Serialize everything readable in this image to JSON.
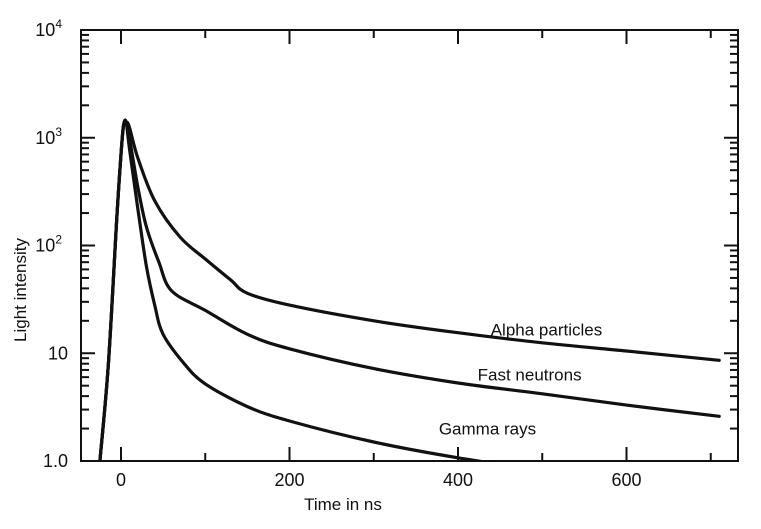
{
  "chart_data": {
    "type": "line",
    "title": "",
    "xlabel": "Time in ns",
    "ylabel": "Light intensity",
    "xlim": [
      -50,
      720
    ],
    "ylim": [
      1,
      10000
    ],
    "y_scale": "log",
    "x_ticks": [
      0,
      200,
      400,
      600
    ],
    "x_tick_labels": [
      "0",
      "200",
      "400",
      "600"
    ],
    "y_ticks": [
      1,
      10,
      100,
      1000,
      10000
    ],
    "y_tick_labels": [
      {
        "base": "1.0",
        "exp": ""
      },
      {
        "base": "10",
        "exp": ""
      },
      {
        "base": "10",
        "exp": "2"
      },
      {
        "base": "10",
        "exp": "3"
      },
      {
        "base": "10",
        "exp": "4"
      }
    ],
    "grid": false,
    "series": [
      {
        "name": "Alpha particles",
        "x": [
          -25,
          -15,
          -5,
          0,
          3,
          6,
          10,
          20,
          40,
          70,
          100,
          130,
          150,
          200,
          300,
          400,
          500,
          600,
          710
        ],
        "y": [
          1,
          8,
          180,
          700,
          1300,
          1400,
          1250,
          650,
          260,
          120,
          75,
          48,
          36,
          28,
          20,
          15.5,
          12.5,
          10.5,
          8.6
        ]
      },
      {
        "name": "Fast neutrons",
        "x": [
          -25,
          -15,
          -5,
          0,
          3,
          6,
          10,
          20,
          30,
          45,
          60,
          100,
          150,
          200,
          300,
          400,
          500,
          600,
          710
        ],
        "y": [
          1,
          8,
          180,
          700,
          1300,
          1400,
          1000,
          350,
          150,
          70,
          38,
          25,
          15,
          11,
          7.2,
          5.3,
          4.2,
          3.3,
          2.6
        ]
      },
      {
        "name": "Gamma rays",
        "x": [
          -25,
          -15,
          -5,
          0,
          3,
          6,
          10,
          20,
          30,
          40,
          50,
          75,
          100,
          150,
          200,
          300,
          400,
          500
        ],
        "y": [
          1,
          8,
          180,
          700,
          1300,
          1400,
          800,
          220,
          65,
          28,
          15,
          8,
          5.2,
          3.2,
          2.35,
          1.5,
          1.07,
          0.82
        ]
      }
    ],
    "annotations": [
      "Alpha particles",
      "Fast neutrons",
      "Gamma rays"
    ]
  }
}
